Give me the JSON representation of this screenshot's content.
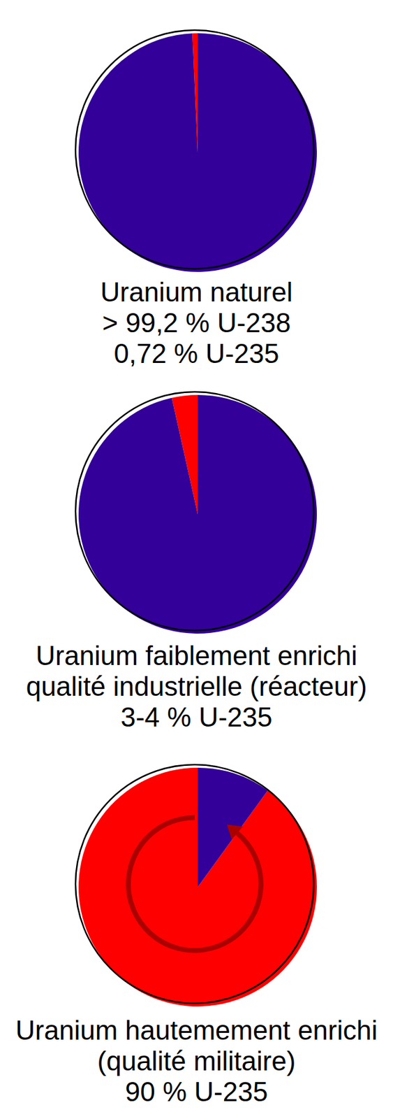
{
  "chart_data": [
    {
      "type": "pie",
      "title": "Uranium naturel",
      "annotations": [
        "> 99,2 % U-238",
        "0,72 % U-235"
      ],
      "values": [
        0.72,
        99.28
      ],
      "colors": [
        "#ff0000",
        "#330099"
      ]
    },
    {
      "type": "pie",
      "title": "Uranium faiblement enrichi",
      "annotations": [
        "qualité industrielle (réacteur)",
        "3-4 % U-235"
      ],
      "values": [
        3.5,
        96.5
      ],
      "colors": [
        "#ff0000",
        "#330099"
      ]
    },
    {
      "type": "pie",
      "title": "Uranium hautemement enrichi",
      "annotations": [
        "(qualité militaire)",
        "90 % U-235"
      ],
      "values": [
        90,
        10
      ],
      "colors": [
        "#ff0000",
        "#330099"
      ]
    }
  ]
}
